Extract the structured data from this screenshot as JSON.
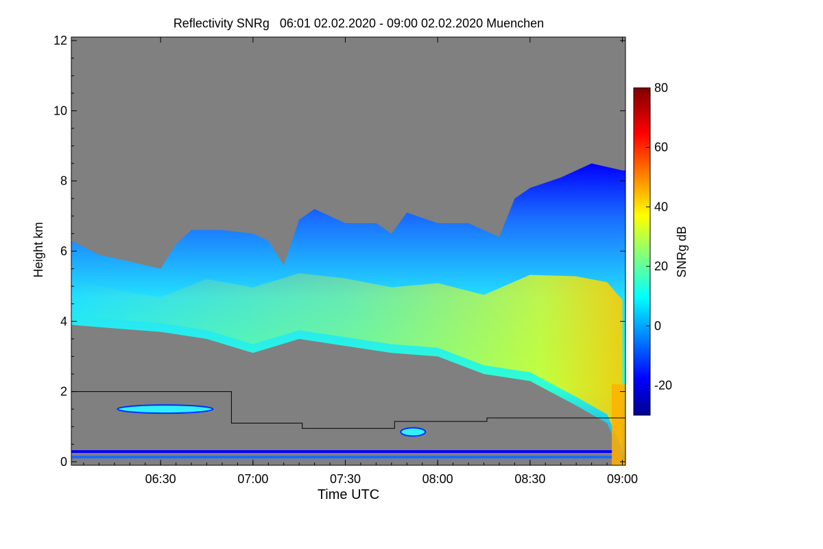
{
  "chart_data": {
    "type": "heatmap",
    "title": "Reflectivity SNRg   06:01 02.02.2020 - 09:00 02.02.2020 Muenchen",
    "xlabel": "Time UTC",
    "ylabel": "Height km",
    "xlim": [
      "06:01",
      "09:01"
    ],
    "ylim": [
      -0.1,
      12.1
    ],
    "x_ticks": [
      "06:30",
      "07:00",
      "07:30",
      "08:00",
      "08:30",
      "09:00"
    ],
    "y_ticks": [
      "0",
      "2",
      "4",
      "6",
      "8",
      "10",
      "12"
    ],
    "colorbar": {
      "label": "SNRg dB",
      "range": [
        -30,
        80
      ],
      "ticks": [
        "-20",
        "0",
        "20",
        "40",
        "60",
        "80"
      ]
    },
    "background_color": "#808080",
    "cloud": {
      "top_km": [
        [
          "06:01",
          6.3
        ],
        [
          "06:10",
          5.9
        ],
        [
          "06:20",
          5.7
        ],
        [
          "06:30",
          5.5
        ],
        [
          "06:35",
          6.2
        ],
        [
          "06:40",
          6.6
        ],
        [
          "06:50",
          6.6
        ],
        [
          "07:00",
          6.5
        ],
        [
          "07:05",
          6.3
        ],
        [
          "07:10",
          5.6
        ],
        [
          "07:15",
          6.9
        ],
        [
          "07:20",
          7.2
        ],
        [
          "07:30",
          6.8
        ],
        [
          "07:40",
          6.8
        ],
        [
          "07:45",
          6.5
        ],
        [
          "07:50",
          7.1
        ],
        [
          "08:00",
          6.8
        ],
        [
          "08:10",
          6.8
        ],
        [
          "08:20",
          6.4
        ],
        [
          "08:25",
          7.5
        ],
        [
          "08:30",
          7.8
        ],
        [
          "08:40",
          8.1
        ],
        [
          "08:50",
          8.5
        ],
        [
          "09:00",
          8.3
        ]
      ],
      "base_km": [
        [
          "06:01",
          3.9
        ],
        [
          "06:15",
          3.8
        ],
        [
          "06:30",
          3.7
        ],
        [
          "06:45",
          3.5
        ],
        [
          "07:00",
          3.1
        ],
        [
          "07:15",
          3.5
        ],
        [
          "07:30",
          3.3
        ],
        [
          "07:45",
          3.1
        ],
        [
          "08:00",
          3.0
        ],
        [
          "08:15",
          2.5
        ],
        [
          "08:30",
          2.3
        ],
        [
          "08:45",
          1.6
        ],
        [
          "08:55",
          1.1
        ],
        [
          "09:00",
          0.1
        ]
      ],
      "core_snr_db": 40
    },
    "low_echo_patches": [
      {
        "t1": "06:16",
        "t2": "06:47",
        "h": 1.5,
        "snr_db": 5
      },
      {
        "t1": "07:48",
        "t2": "07:56",
        "h": 0.85,
        "snr_db": 5
      }
    ],
    "overlay_line_km": [
      [
        "06:01",
        2.0
      ],
      [
        "06:53",
        2.0
      ],
      [
        "06:53",
        1.1
      ],
      [
        "07:16",
        1.1
      ],
      [
        "07:16",
        0.95
      ],
      [
        "07:46",
        0.95
      ],
      [
        "07:46",
        1.15
      ],
      [
        "08:16",
        1.15
      ],
      [
        "08:16",
        1.25
      ],
      [
        "09:01",
        1.25
      ]
    ]
  }
}
